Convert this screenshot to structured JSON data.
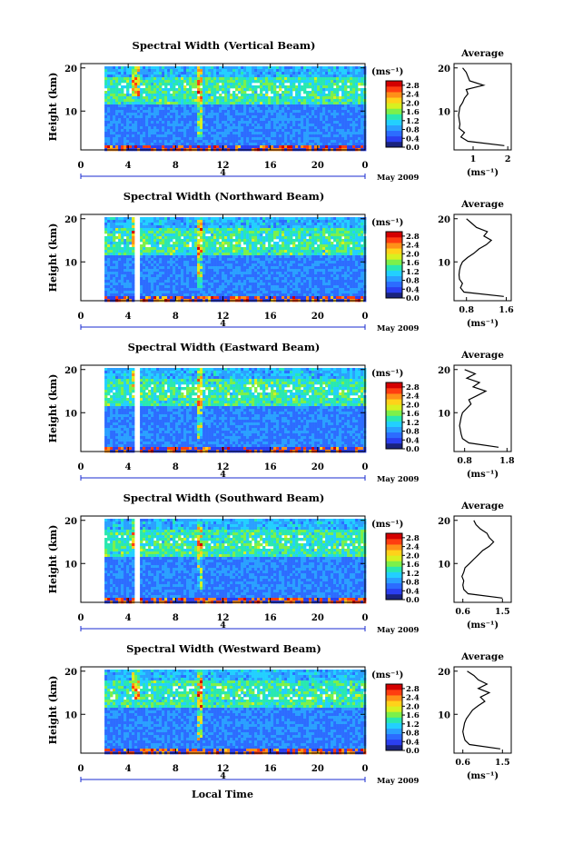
{
  "figure": {
    "bottom_label": "Local Time",
    "date_label": "May 2009",
    "day_label": "4"
  },
  "colorbar": {
    "unit_label": "(ms⁻¹)",
    "ticks": [
      "2.8",
      "2.4",
      "2.0",
      "1.6",
      "1.2",
      "0.8",
      "0.4",
      "0.0"
    ],
    "colors": [
      "#1a237e",
      "#2b3ff0",
      "#2c6cff",
      "#2aa0ff",
      "#22d0ff",
      "#29e8b0",
      "#7cf04a",
      "#d8f020",
      "#ffd21a",
      "#ff9018",
      "#ff3d10",
      "#d40000"
    ]
  },
  "chart_data": [
    {
      "type": "heatmap",
      "title": "Spectral Width (Vertical Beam)",
      "xlabel": "",
      "ylabel": "Height (km)",
      "x_ticks": [
        "0",
        "4",
        "8",
        "12",
        "16",
        "20",
        "0"
      ],
      "y_ticks": [
        "10",
        "20"
      ],
      "xlim": [
        0,
        24
      ],
      "ylim": [
        1,
        21
      ],
      "zlim": [
        0.0,
        3.0
      ],
      "data_start_hour": 2,
      "gap_hours": [],
      "profile": {
        "title": "Average",
        "xlabel": "(ms⁻¹)",
        "x_ticks": [
          "1",
          "2"
        ],
        "xlim": [
          0.45,
          2.1
        ],
        "heights": [
          2,
          3,
          4,
          5,
          6,
          7,
          8,
          9,
          10,
          11,
          12,
          13,
          14,
          15,
          16,
          17,
          18,
          19,
          20
        ],
        "values": [
          1.9,
          0.85,
          0.65,
          0.75,
          0.6,
          0.62,
          0.6,
          0.58,
          0.6,
          0.62,
          0.7,
          0.75,
          0.85,
          0.8,
          1.3,
          0.9,
          0.85,
          0.8,
          0.7
        ]
      }
    },
    {
      "type": "heatmap",
      "title": "Spectral Width (Northward Beam)",
      "xlabel": "",
      "ylabel": "Height (km)",
      "x_ticks": [
        "0",
        "4",
        "8",
        "12",
        "16",
        "20",
        "0"
      ],
      "y_ticks": [
        "10",
        "20"
      ],
      "xlim": [
        0,
        24
      ],
      "ylim": [
        1,
        21
      ],
      "zlim": [
        0.0,
        3.0
      ],
      "data_start_hour": 2,
      "gap_hours": [
        4.7
      ],
      "profile": {
        "title": "Average",
        "xlabel": "(ms⁻¹)",
        "x_ticks": [
          "0.8",
          "1.6"
        ],
        "xlim": [
          0.55,
          1.7
        ],
        "heights": [
          2,
          3,
          4,
          5,
          6,
          7,
          8,
          9,
          10,
          11,
          12,
          13,
          14,
          15,
          16,
          17,
          18,
          19,
          20
        ],
        "values": [
          1.55,
          0.75,
          0.68,
          0.72,
          0.66,
          0.65,
          0.66,
          0.68,
          0.72,
          0.82,
          0.95,
          1.05,
          1.2,
          1.3,
          1.15,
          1.22,
          1.0,
          0.9,
          0.8
        ]
      }
    },
    {
      "type": "heatmap",
      "title": "Spectral Width (Eastward Beam)",
      "xlabel": "",
      "ylabel": "Height (km)",
      "x_ticks": [
        "0",
        "4",
        "8",
        "12",
        "16",
        "20",
        "0"
      ],
      "y_ticks": [
        "10",
        "20"
      ],
      "xlim": [
        0,
        24
      ],
      "ylim": [
        1,
        21
      ],
      "zlim": [
        0.0,
        3.0
      ],
      "data_start_hour": 2,
      "gap_hours": [
        4.7
      ],
      "profile": {
        "title": "Average",
        "xlabel": "(ms⁻¹)",
        "x_ticks": [
          "0.8",
          "1.8"
        ],
        "xlim": [
          0.55,
          1.9
        ],
        "heights": [
          2,
          3,
          4,
          5,
          6,
          7,
          8,
          9,
          10,
          11,
          12,
          13,
          14,
          15,
          16,
          17,
          18,
          19,
          20
        ],
        "values": [
          1.6,
          0.9,
          0.75,
          0.72,
          0.7,
          0.68,
          0.7,
          0.72,
          0.75,
          0.85,
          0.95,
          0.9,
          1.1,
          1.3,
          1.0,
          1.15,
          0.85,
          1.05,
          0.8
        ]
      }
    },
    {
      "type": "heatmap",
      "title": "Spectral Width (Southward Beam)",
      "xlabel": "",
      "ylabel": "Height (km)",
      "x_ticks": [
        "0",
        "4",
        "8",
        "12",
        "16",
        "20",
        "0"
      ],
      "y_ticks": [
        "10",
        "20"
      ],
      "xlim": [
        0,
        24
      ],
      "ylim": [
        1,
        21
      ],
      "zlim": [
        0.0,
        3.0
      ],
      "data_start_hour": 2,
      "gap_hours": [
        4.7
      ],
      "profile": {
        "title": "Average",
        "xlabel": "(ms⁻¹)",
        "x_ticks": [
          "0.6",
          "1.5"
        ],
        "xlim": [
          0.4,
          1.7
        ],
        "heights": [
          2,
          3,
          4,
          5,
          6,
          7,
          8,
          9,
          10,
          11,
          12,
          13,
          14,
          15,
          16,
          17,
          18,
          19,
          20
        ],
        "values": [
          1.5,
          0.72,
          0.62,
          0.6,
          0.62,
          0.58,
          0.62,
          0.65,
          0.75,
          0.85,
          0.95,
          1.05,
          1.2,
          1.3,
          1.2,
          1.15,
          1.0,
          0.9,
          0.85
        ]
      }
    },
    {
      "type": "heatmap",
      "title": "Spectral Width (Westward Beam)",
      "xlabel": "",
      "ylabel": "Height (km)",
      "x_ticks": [
        "0",
        "4",
        "8",
        "12",
        "16",
        "20",
        "0"
      ],
      "y_ticks": [
        "10",
        "20"
      ],
      "xlim": [
        0,
        24
      ],
      "ylim": [
        1,
        21
      ],
      "zlim": [
        0.0,
        3.0
      ],
      "data_start_hour": 2,
      "gap_hours": [],
      "profile": {
        "title": "Average",
        "xlabel": "(ms⁻¹)",
        "x_ticks": [
          "0.6",
          "1.5"
        ],
        "xlim": [
          0.4,
          1.7
        ],
        "heights": [
          2,
          3,
          4,
          5,
          6,
          7,
          8,
          9,
          10,
          11,
          12,
          13,
          14,
          15,
          16,
          17,
          18,
          19,
          20
        ],
        "values": [
          1.45,
          0.75,
          0.65,
          0.62,
          0.6,
          0.62,
          0.64,
          0.68,
          0.75,
          0.82,
          0.95,
          1.1,
          1.0,
          1.2,
          0.95,
          1.15,
          0.95,
          0.85,
          0.7
        ]
      }
    }
  ]
}
